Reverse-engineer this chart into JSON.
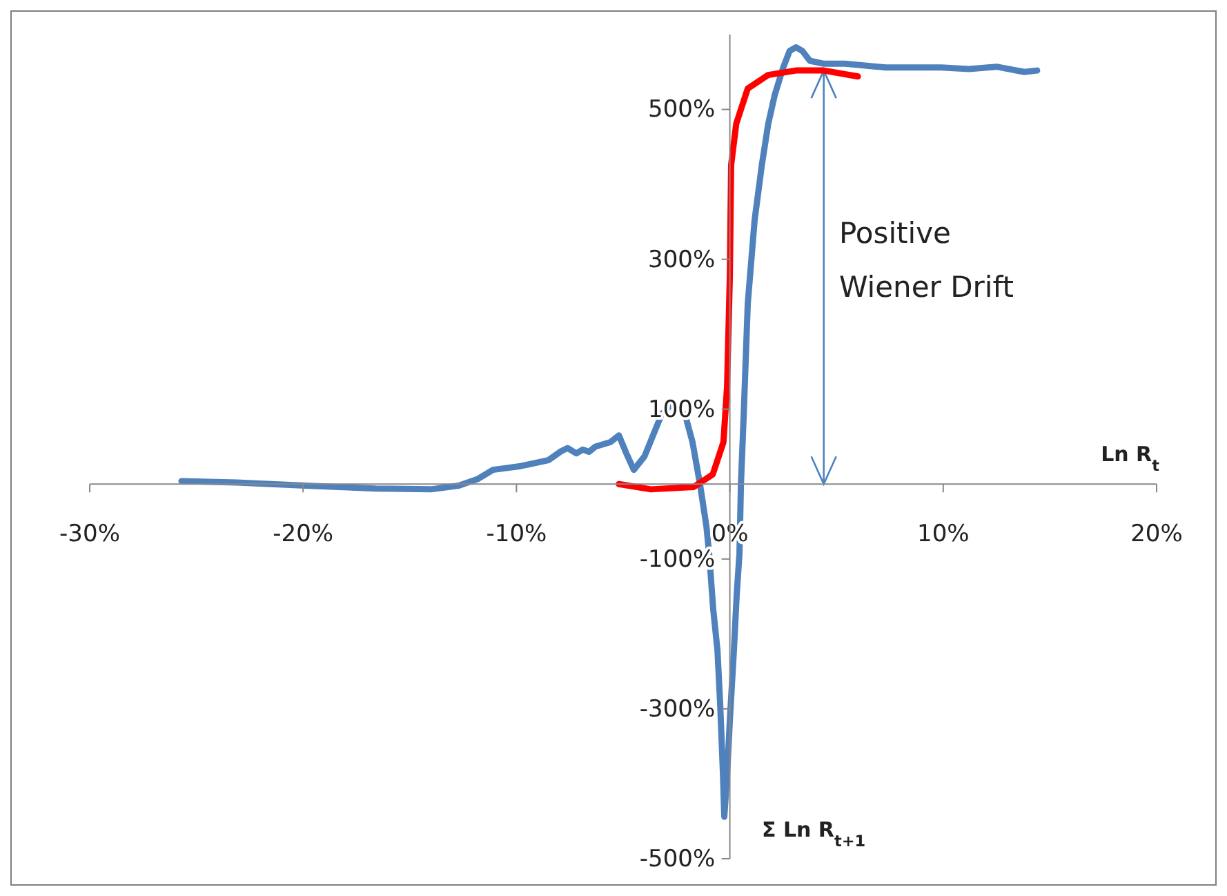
{
  "chart_data": {
    "type": "line",
    "xlabel": "Ln R$_{t}$",
    "ylabel": "Σ Ln R$_{t+1}$",
    "annotations": [
      "Positive Wiener Drift"
    ],
    "xlim": [
      -30,
      20
    ],
    "ylim": [
      -500,
      600
    ],
    "xticks": [
      {
        "value": -30,
        "label": "-30%"
      },
      {
        "value": -20,
        "label": "-20%"
      },
      {
        "value": -10,
        "label": "-10%"
      },
      {
        "value": 0,
        "label": "0%"
      },
      {
        "value": 10,
        "label": "10%"
      },
      {
        "value": 20,
        "label": "20%"
      }
    ],
    "yticks": [
      {
        "value": -500,
        "label": "-500%"
      },
      {
        "value": -300,
        "label": "-300%"
      },
      {
        "value": -100,
        "label": "-100%"
      },
      {
        "value": 100,
        "label": "100%"
      },
      {
        "value": 300,
        "label": "300%"
      },
      {
        "value": 500,
        "label": "500%"
      }
    ],
    "grid": false,
    "line_style": "solid",
    "marker": "none",
    "series": [
      {
        "color": "#4f81bd",
        "x": [
          -25.7,
          -23.1,
          -19.9,
          -16.6,
          -14.0,
          -12.7,
          -11.8,
          -11.1,
          -9.8,
          -8.5,
          -7.9,
          -7.6,
          -7.2,
          -6.9,
          -6.6,
          -6.3,
          -5.6,
          -5.2,
          -4.85,
          -4.5,
          -4.0,
          -3.6,
          -3.2,
          -2.7,
          -2.4,
          -2.1,
          -1.75,
          -1.4,
          -1.1,
          -0.97,
          -0.78,
          -0.58,
          -0.45,
          -0.32,
          -0.26,
          -0.13,
          0,
          0.19,
          0.32,
          0.45,
          0.52,
          0.65,
          0.84,
          1.16,
          1.5,
          1.8,
          2.1,
          2.5,
          2.8,
          3.1,
          3.4,
          3.75,
          4.4,
          5.4,
          7.3,
          9.9,
          11.2,
          12.5,
          13.8,
          14.4
        ],
        "values": [
          4,
          2,
          -2,
          -6,
          -7,
          -2,
          7,
          19,
          24,
          32,
          44,
          48,
          41,
          46,
          43,
          50,
          56,
          65,
          41,
          19,
          37,
          65,
          93,
          107,
          96,
          93,
          56,
          0,
          -56,
          -93,
          -167,
          -222,
          -296,
          -389,
          -444,
          -389,
          -315,
          -222,
          -148,
          -93,
          0,
          93,
          241,
          352,
          426,
          481,
          519,
          556,
          578,
          583,
          578,
          565,
          561,
          561,
          556,
          556,
          554,
          557,
          550,
          552
        ]
      },
      {
        "color": "#ff0000",
        "x": [
          -5.2,
          -3.7,
          -1.7,
          -0.8,
          -0.3,
          -0.13,
          0,
          0.06,
          0.3,
          0.84,
          1.8,
          3.1,
          4.4,
          6.0
        ],
        "values": [
          0,
          -7,
          -4,
          13,
          56,
          130,
          278,
          426,
          481,
          528,
          546,
          552,
          552,
          544
        ]
      }
    ]
  }
}
